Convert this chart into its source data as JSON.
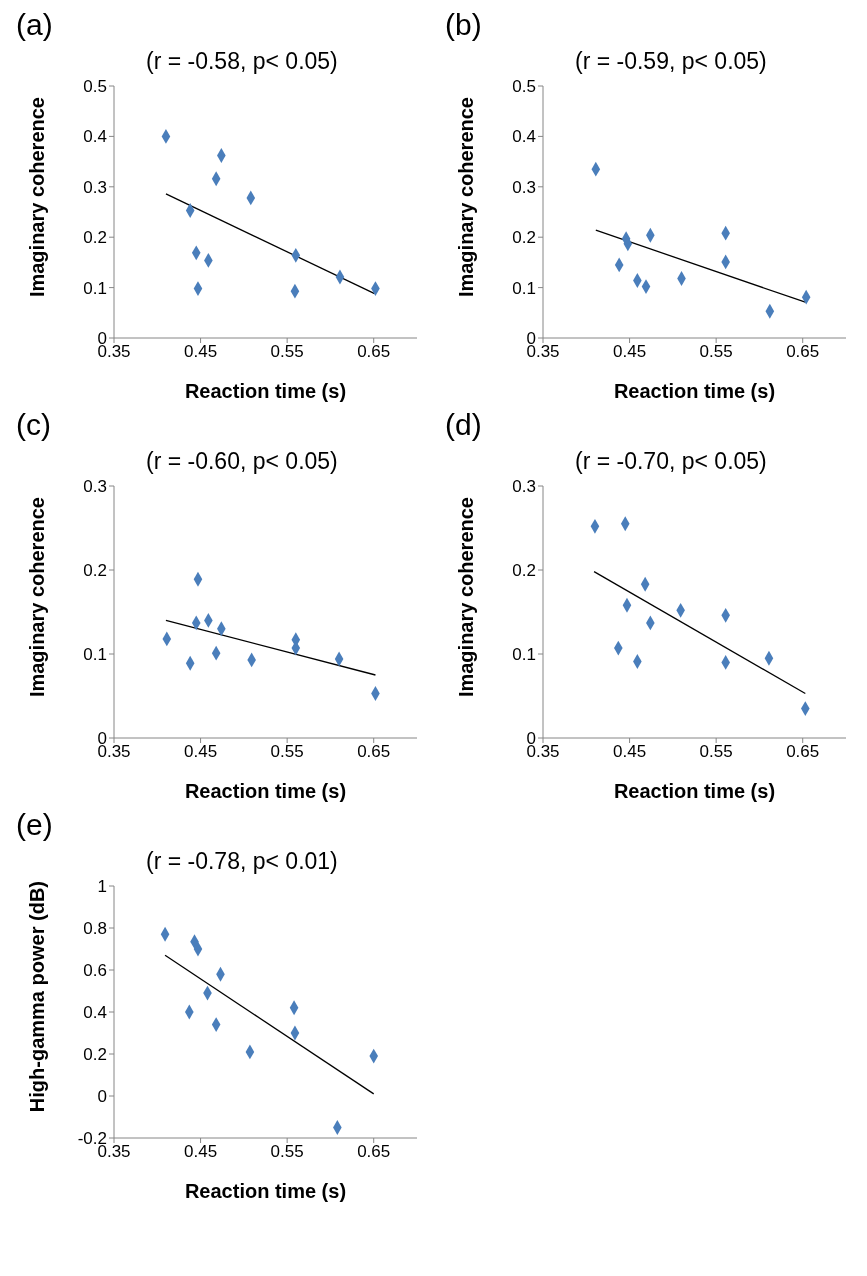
{
  "chart_data": [
    {
      "type": "scatter",
      "title": "(a)",
      "xlabel": "Reaction time (s)",
      "ylabel": "Imaginary coherence",
      "annotations": [
        "(r = -0.58, p< 0.05)"
      ],
      "xlim": [
        0.35,
        0.7
      ],
      "xticks": [
        0.35,
        0.45,
        0.55,
        0.65
      ],
      "ylim": [
        0,
        0.5
      ],
      "yticks": [
        0,
        0.1,
        0.2,
        0.3,
        0.4,
        0.5
      ],
      "marker": "diamond",
      "series": [
        {
          "type": "scatter",
          "color": "#4a7ebb",
          "x": [
            0.41,
            0.438,
            0.445,
            0.447,
            0.459,
            0.468,
            0.474,
            0.508,
            0.559,
            0.56,
            0.611,
            0.652
          ],
          "values": [
            0.4,
            0.253,
            0.169,
            0.098,
            0.154,
            0.316,
            0.362,
            0.278,
            0.093,
            0.164,
            0.121,
            0.098
          ]
        },
        {
          "type": "line",
          "color": "#000000",
          "marker": "none",
          "x": [
            0.41,
            0.651
          ],
          "values": [
            0.286,
            0.088
          ]
        }
      ]
    },
    {
      "type": "scatter",
      "title": "(b)",
      "xlabel": "Reaction time (s)",
      "ylabel": "Imaginary coherence",
      "annotations": [
        "(r = -0.59, p< 0.05)"
      ],
      "xlim": [
        0.35,
        0.7
      ],
      "xticks": [
        0.35,
        0.45,
        0.55,
        0.65
      ],
      "ylim": [
        0,
        0.5
      ],
      "yticks": [
        0,
        0.1,
        0.2,
        0.3,
        0.4,
        0.5
      ],
      "marker": "diamond",
      "series": [
        {
          "type": "scatter",
          "color": "#4a7ebb",
          "x": [
            0.411,
            0.438,
            0.446,
            0.448,
            0.459,
            0.469,
            0.474,
            0.51,
            0.561,
            0.561,
            0.612,
            0.654
          ],
          "values": [
            0.335,
            0.145,
            0.197,
            0.187,
            0.114,
            0.102,
            0.204,
            0.118,
            0.208,
            0.151,
            0.053,
            0.081
          ]
        },
        {
          "type": "line",
          "color": "#000000",
          "marker": "none",
          "x": [
            0.411,
            0.653
          ],
          "values": [
            0.214,
            0.071
          ]
        }
      ]
    },
    {
      "type": "scatter",
      "title": "(c)",
      "xlabel": "Reaction time (s)",
      "ylabel": "Imaginary coherence",
      "annotations": [
        "(r = -0.60, p< 0.05)"
      ],
      "xlim": [
        0.35,
        0.7
      ],
      "xticks": [
        0.35,
        0.45,
        0.55,
        0.65
      ],
      "ylim": [
        0,
        0.3
      ],
      "yticks": [
        0,
        0.1,
        0.2,
        0.3
      ],
      "marker": "diamond",
      "series": [
        {
          "type": "scatter",
          "color": "#4a7ebb",
          "x": [
            0.411,
            0.438,
            0.447,
            0.445,
            0.459,
            0.468,
            0.474,
            0.509,
            0.56,
            0.56,
            0.61,
            0.652
          ],
          "values": [
            0.118,
            0.089,
            0.189,
            0.137,
            0.14,
            0.101,
            0.13,
            0.093,
            0.117,
            0.107,
            0.094,
            0.053
          ]
        },
        {
          "type": "line",
          "color": "#000000",
          "marker": "none",
          "x": [
            0.41,
            0.652
          ],
          "values": [
            0.14,
            0.075
          ]
        }
      ]
    },
    {
      "type": "scatter",
      "title": "(d)",
      "xlabel": "Reaction time (s)",
      "ylabel": "Imaginary coherence",
      "annotations": [
        "(r = -0.70, p< 0.05)"
      ],
      "xlim": [
        0.35,
        0.7
      ],
      "xticks": [
        0.35,
        0.45,
        0.55,
        0.65
      ],
      "ylim": [
        0,
        0.3
      ],
      "yticks": [
        0,
        0.1,
        0.2,
        0.3
      ],
      "marker": "diamond",
      "series": [
        {
          "type": "scatter",
          "color": "#4a7ebb",
          "x": [
            0.41,
            0.437,
            0.445,
            0.447,
            0.459,
            0.468,
            0.474,
            0.509,
            0.561,
            0.561,
            0.611,
            0.653
          ],
          "values": [
            0.252,
            0.107,
            0.255,
            0.158,
            0.091,
            0.183,
            0.137,
            0.152,
            0.146,
            0.09,
            0.095,
            0.035
          ]
        },
        {
          "type": "line",
          "color": "#000000",
          "marker": "none",
          "x": [
            0.409,
            0.653
          ],
          "values": [
            0.198,
            0.053
          ]
        }
      ]
    },
    {
      "type": "scatter",
      "title": "(e)",
      "xlabel": "Reaction time (s)",
      "ylabel": "High-gamma power (dB)",
      "annotations": [
        "(r = -0.78, p< 0.01)"
      ],
      "xlim": [
        0.35,
        0.7
      ],
      "xticks": [
        0.35,
        0.45,
        0.55,
        0.65
      ],
      "ylim": [
        -0.2,
        1
      ],
      "yticks": [
        -0.2,
        0,
        0.2,
        0.4,
        0.6,
        0.8,
        1
      ],
      "marker": "diamond",
      "series": [
        {
          "type": "scatter",
          "color": "#4a7ebb",
          "x": [
            0.409,
            0.437,
            0.443,
            0.447,
            0.458,
            0.468,
            0.473,
            0.507,
            0.558,
            0.559,
            0.608,
            0.65
          ],
          "values": [
            0.77,
            0.4,
            0.735,
            0.7,
            0.49,
            0.34,
            0.58,
            0.21,
            0.42,
            0.3,
            -0.15,
            0.19
          ]
        },
        {
          "type": "line",
          "color": "#000000",
          "marker": "none",
          "x": [
            0.409,
            0.65
          ],
          "values": [
            0.67,
            0.01
          ]
        }
      ]
    }
  ]
}
